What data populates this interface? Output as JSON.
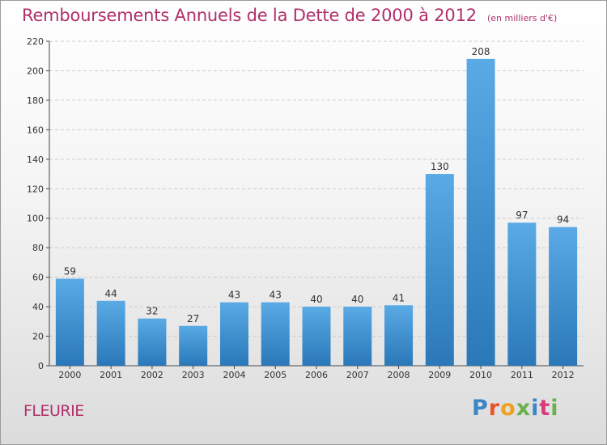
{
  "header": {
    "title": "Remboursements Annuels de la Dette de 2000 à 2012",
    "subtitle": "(en milliers d'€)"
  },
  "commune": "FLEURIE",
  "brand": {
    "name": "Proxiti",
    "letter_colors": [
      "#3a86c8",
      "#e8562a",
      "#f0a020",
      "#6ab04c",
      "#3a86c8",
      "#d93a7a",
      "#6ab04c"
    ]
  },
  "colors": {
    "bar_top": "#5aaae6",
    "bar_bottom": "#2a78b8",
    "title": "#b0306a",
    "grid": "#cccccc"
  },
  "chart_data": {
    "type": "bar",
    "categories": [
      "2000",
      "2001",
      "2002",
      "2003",
      "2004",
      "2005",
      "2006",
      "2007",
      "2008",
      "2009",
      "2010",
      "2011",
      "2012"
    ],
    "values": [
      59,
      44,
      32,
      27,
      43,
      43,
      40,
      40,
      41,
      130,
      208,
      97,
      94
    ],
    "ylim": [
      0,
      220
    ],
    "yticks": [
      0,
      20,
      40,
      60,
      80,
      100,
      120,
      140,
      160,
      180,
      200,
      220
    ],
    "grid": "horizontal dashed",
    "data_labels": true
  }
}
